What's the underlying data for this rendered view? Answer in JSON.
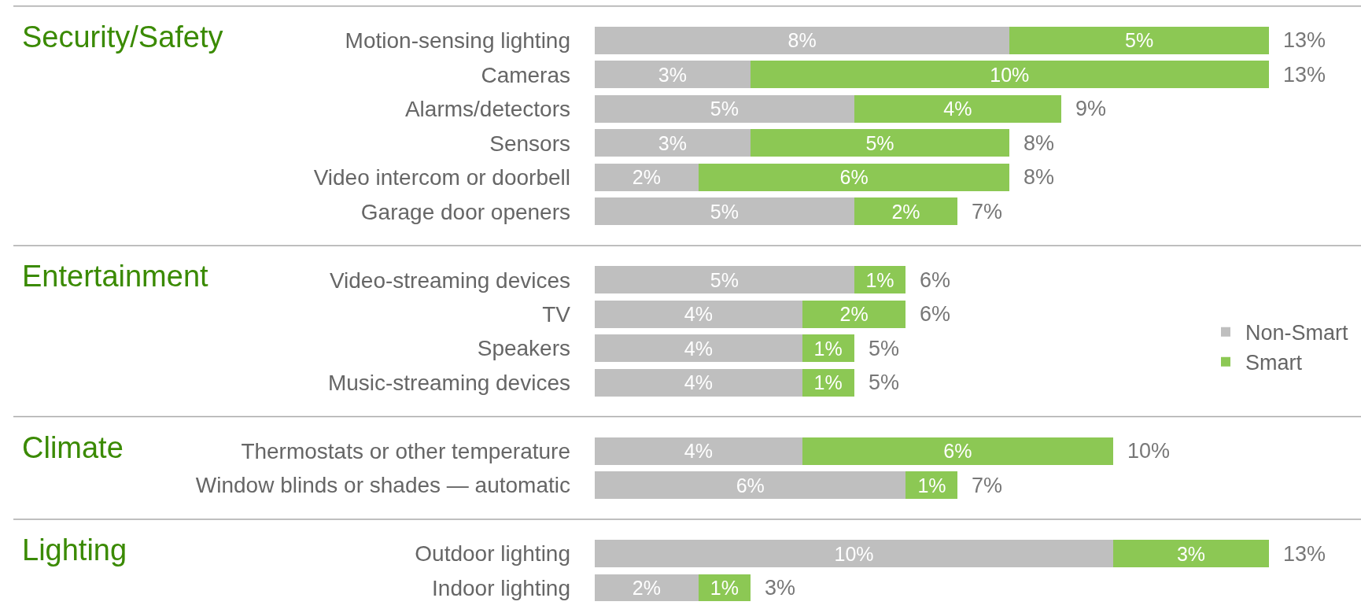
{
  "chart_data": {
    "type": "bar",
    "orientation": "horizontal",
    "stacked": true,
    "legend": "right",
    "categories": [
      null,
      "Motion-sensing lighting",
      "Cameras",
      "Alarms/detectors",
      "Sensors",
      "Video intercom or doorbell",
      "Garage door openers",
      null,
      "Video-streaming devices",
      "TV",
      "Speakers",
      "Music-streaming devices",
      null,
      "Thermostats or other temperature",
      "Window blinds or shades — automatic",
      null,
      "Outdoor lighting",
      "Indoor lighting"
    ],
    "series": [
      {
        "name": "Non-Smart",
        "color": "#bfbfbf",
        "values": [
          null,
          8,
          3,
          5,
          3,
          2,
          5,
          null,
          5,
          4,
          4,
          4,
          null,
          4,
          6,
          null,
          10,
          2
        ],
        "value_labels": [
          null,
          "8%",
          "3%",
          "5%",
          "3%",
          "2%",
          "5%",
          null,
          "5%",
          "4%",
          "4%",
          "4%",
          null,
          "4%",
          "6%",
          null,
          "10%",
          "2%"
        ]
      },
      {
        "name": "Smart",
        "color": "#8cc854",
        "values": [
          null,
          5,
          10,
          4,
          5,
          6,
          2,
          null,
          1,
          2,
          1,
          1,
          null,
          6,
          1,
          null,
          3,
          1
        ],
        "value_labels": [
          null,
          "5%",
          "10%",
          "4%",
          "5%",
          "6%",
          "2%",
          null,
          "1%",
          "2%",
          "1%",
          "1%",
          null,
          "6%",
          "1%",
          null,
          "3%",
          "1%"
        ]
      }
    ],
    "totals": [
      null,
      "13%",
      "13%",
      "9%",
      "8%",
      "8%",
      "7%",
      null,
      "6%",
      "6%",
      "5%",
      "5%",
      null,
      "10%",
      "7%",
      null,
      "13%",
      "3%"
    ],
    "annotations": [
      "Security/Safety",
      "Entertainment",
      "Climate",
      "Lighting"
    ]
  }
}
